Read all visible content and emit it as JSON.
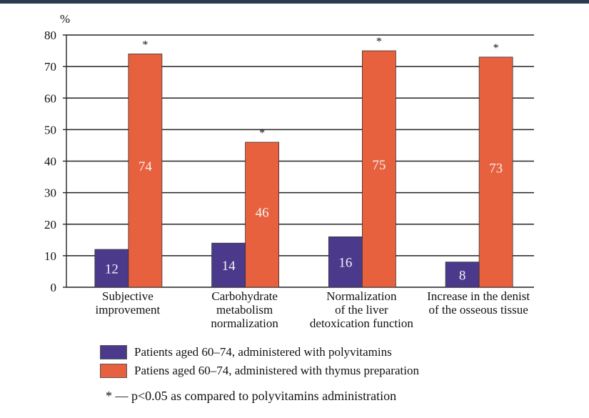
{
  "chart_data": {
    "type": "bar",
    "ylabel": "%",
    "ylim": [
      0,
      80
    ],
    "yticks": [
      "0",
      "10",
      "20",
      "30",
      "40",
      "50",
      "60",
      "70",
      "80"
    ],
    "categories": [
      [
        "Subjective",
        "improvement"
      ],
      [
        "Carbohydrate",
        "metabolism",
        "normalization"
      ],
      [
        "Normalization",
        "of the liver",
        "detoxication function"
      ],
      [
        "Increase in the denist",
        "of the osseous tissue"
      ]
    ],
    "series": [
      {
        "name": "Patients aged 60–74, administered with polyvitamins",
        "color": "#4b3a8c",
        "values": [
          12,
          14,
          16,
          8
        ]
      },
      {
        "name": "Patiens aged 60–74, administered with thymus preparation",
        "color": "#e8613f",
        "values": [
          74,
          46,
          75,
          73
        ]
      }
    ],
    "significance_marker": "*",
    "significant": [
      true,
      true,
      true,
      true
    ],
    "footnote": "* — p<0.05 as compared to polyvitamins administration"
  }
}
